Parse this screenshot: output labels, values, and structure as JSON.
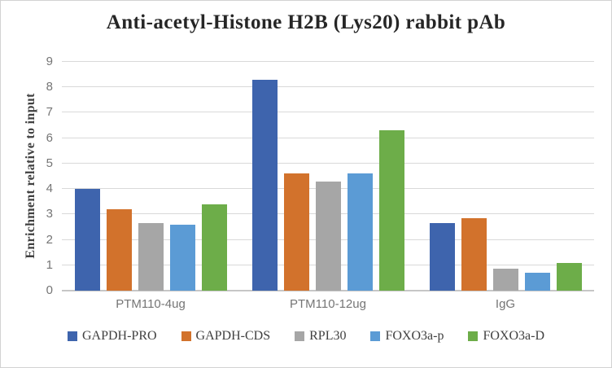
{
  "chart_data": {
    "type": "bar",
    "title": "Anti-acetyl-Histone H2B (Lys20) rabbit pAb",
    "xlabel": "",
    "ylabel": "Enrichment relative to input",
    "categories": [
      "PTM110-4ug",
      "PTM110-12ug",
      "IgG"
    ],
    "series": [
      {
        "name": "GAPDH-PRO",
        "color": "#3e64ad",
        "values": [
          4.0,
          8.3,
          2.65
        ]
      },
      {
        "name": "GAPDH-CDS",
        "color": "#d2722c",
        "values": [
          3.2,
          4.6,
          2.85
        ]
      },
      {
        "name": "RPL30",
        "color": "#a6a6a6",
        "values": [
          2.65,
          4.3,
          0.85
        ]
      },
      {
        "name": "FOXO3a-p",
        "color": "#5b9bd5",
        "values": [
          2.6,
          4.6,
          0.7
        ]
      },
      {
        "name": "FOXO3a-D",
        "color": "#6dad49",
        "values": [
          3.4,
          6.3,
          1.1
        ]
      }
    ],
    "ylim": [
      0,
      9
    ],
    "ytick_step": 1,
    "yticks": [
      "0",
      "1",
      "2",
      "3",
      "4",
      "5",
      "6",
      "7",
      "8",
      "9"
    ],
    "grid": "horizontal",
    "legend_position": "bottom"
  },
  "colors": {
    "gridline": "#d9d9d9",
    "axis_line": "#c6c6c6",
    "title_text": "#262626",
    "ylabel_text": "#404040",
    "tick_text": "#757575",
    "category_text": "#757575",
    "legend_text": "#404040",
    "border": "#d2d2d2",
    "background": "#ffffff"
  }
}
